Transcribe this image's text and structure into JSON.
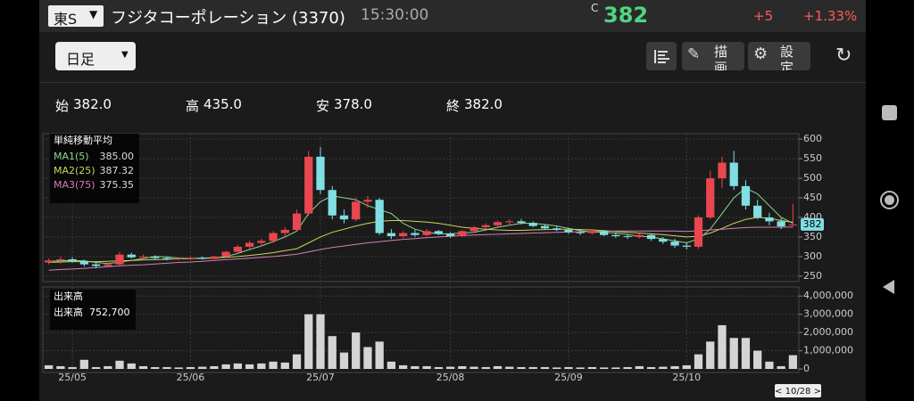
{
  "header": {
    "market": "東S",
    "name": "フジタコーポレーション (3370)",
    "time": "15:30:00",
    "price_prefix": "C",
    "price": "382",
    "change": "+5",
    "change_pct": "+1.33%"
  },
  "toolbar": {
    "period": "日足",
    "draw": "描画",
    "settings": "設定"
  },
  "ohlc": [
    {
      "label": "始",
      "value": "382.0"
    },
    {
      "label": "高",
      "value": "435.0"
    },
    {
      "label": "安",
      "value": "378.0"
    },
    {
      "label": "終",
      "value": "382.0"
    }
  ],
  "cursor_date": "< 10/28 >",
  "chart_data": [
    {
      "type": "candlestick",
      "legend_title": "単純移動平均",
      "up_color": "#e8474f",
      "down_color": "#7fdfe4",
      "grid": true,
      "open": [
        285,
        290,
        293,
        288,
        280,
        276,
        280,
        305,
        298,
        300,
        296,
        293,
        295,
        297,
        294,
        300,
        312,
        325,
        335,
        340,
        360,
        368,
        410,
        555,
        470,
        405,
        395,
        440,
        445,
        360,
        352,
        360,
        355,
        365,
        358,
        352,
        365,
        375,
        380,
        388,
        390,
        386,
        378,
        372,
        368,
        362,
        360,
        365,
        355,
        352,
        350,
        355,
        345,
        338,
        328,
        325,
        400,
        500,
        540,
        480,
        430,
        400,
        390,
        382
      ],
      "high": [
        295,
        300,
        298,
        292,
        285,
        285,
        312,
        310,
        305,
        303,
        300,
        298,
        300,
        300,
        302,
        315,
        330,
        340,
        345,
        365,
        375,
        420,
        570,
        580,
        480,
        420,
        450,
        455,
        450,
        370,
        365,
        368,
        370,
        368,
        362,
        368,
        378,
        385,
        392,
        395,
        396,
        390,
        382,
        378,
        372,
        368,
        370,
        368,
        360,
        358,
        360,
        358,
        350,
        345,
        335,
        405,
        520,
        555,
        570,
        495,
        445,
        412,
        398,
        435
      ],
      "low": [
        280,
        282,
        285,
        275,
        270,
        272,
        278,
        295,
        292,
        293,
        290,
        290,
        291,
        292,
        293,
        298,
        308,
        320,
        330,
        335,
        350,
        365,
        405,
        460,
        395,
        385,
        390,
        425,
        355,
        345,
        348,
        350,
        352,
        355,
        348,
        350,
        360,
        370,
        375,
        380,
        382,
        375,
        368,
        365,
        358,
        355,
        356,
        352,
        348,
        345,
        346,
        340,
        332,
        322,
        318,
        320,
        395,
        475,
        470,
        420,
        395,
        380,
        370,
        378
      ],
      "close": [
        290,
        293,
        288,
        280,
        276,
        280,
        305,
        298,
        300,
        296,
        293,
        295,
        297,
        294,
        300,
        312,
        325,
        335,
        340,
        360,
        368,
        410,
        555,
        470,
        405,
        395,
        440,
        445,
        360,
        352,
        360,
        355,
        365,
        358,
        352,
        365,
        375,
        380,
        388,
        390,
        386,
        378,
        372,
        368,
        362,
        360,
        365,
        355,
        352,
        350,
        355,
        345,
        338,
        328,
        325,
        400,
        500,
        540,
        480,
        430,
        400,
        390,
        377,
        382
      ],
      "series": [
        {
          "name": "MA1(5)",
          "legend_value": "385.00",
          "color": "#8fd88f",
          "values": [
            288,
            289,
            290,
            289,
            285,
            282,
            286,
            290,
            295,
            300,
            299,
            296,
            295,
            296,
            296,
            300,
            308,
            318,
            327,
            338,
            350,
            365,
            410,
            440,
            455,
            450,
            445,
            430,
            420,
            410,
            385,
            370,
            362,
            358,
            358,
            360,
            362,
            368,
            375,
            380,
            385,
            385,
            382,
            378,
            372,
            366,
            363,
            362,
            360,
            356,
            352,
            350,
            345,
            340,
            335,
            345,
            370,
            410,
            450,
            475,
            460,
            430,
            400,
            385
          ]
        },
        {
          "name": "MA2(25)",
          "legend_value": "387.32",
          "color": "#c9d65a",
          "values": [
            285,
            286,
            287,
            287,
            287,
            288,
            289,
            290,
            291,
            292,
            293,
            294,
            295,
            296,
            297,
            298,
            300,
            303,
            306,
            310,
            315,
            320,
            335,
            350,
            362,
            370,
            378,
            385,
            390,
            392,
            392,
            390,
            388,
            385,
            380,
            375,
            372,
            370,
            368,
            367,
            367,
            368,
            369,
            370,
            370,
            369,
            368,
            366,
            364,
            362,
            360,
            358,
            356,
            353,
            350,
            352,
            360,
            372,
            385,
            395,
            400,
            398,
            392,
            387.32
          ]
        },
        {
          "name": "MA3(75)",
          "legend_value": "375.35",
          "color": "#d77fb5",
          "values": [
            265,
            267,
            268,
            270,
            272,
            274,
            276,
            278,
            279,
            281,
            283,
            285,
            286,
            288,
            290,
            292,
            294,
            296,
            298,
            300,
            303,
            306,
            312,
            318,
            323,
            327,
            331,
            335,
            338,
            341,
            344,
            346,
            348,
            350,
            352,
            354,
            355,
            356,
            357,
            358,
            359,
            360,
            361,
            362,
            363,
            363,
            364,
            364,
            365,
            365,
            365,
            365,
            365,
            365,
            364,
            366,
            368,
            370,
            372,
            374,
            375,
            375,
            375,
            375.35
          ]
        }
      ],
      "ylim": [
        236,
        614
      ],
      "yticks": [
        250,
        300,
        350,
        400,
        450,
        500,
        550,
        600
      ],
      "xticks": [
        {
          "value": 2,
          "label": "25/05"
        },
        {
          "value": 12,
          "label": "25/06"
        },
        {
          "value": 23,
          "label": "25/07"
        },
        {
          "value": 34,
          "label": "25/08"
        },
        {
          "value": 44,
          "label": "25/09"
        },
        {
          "value": 54,
          "label": "25/10"
        }
      ]
    },
    {
      "type": "bar",
      "title": "出来高",
      "legend": "出来高",
      "legend_value": "752,700",
      "color": "#d4d4d4",
      "grid": true,
      "values": [
        200000,
        150000,
        100000,
        500000,
        100000,
        150000,
        450000,
        300000,
        150000,
        100000,
        100000,
        80000,
        100000,
        120000,
        150000,
        250000,
        300000,
        250000,
        300000,
        400000,
        350000,
        800000,
        3000000,
        3000000,
        1800000,
        900000,
        2000000,
        1200000,
        1500000,
        400000,
        200000,
        150000,
        150000,
        100000,
        120000,
        150000,
        120000,
        100000,
        150000,
        120000,
        100000,
        100000,
        100000,
        80000,
        100000,
        80000,
        100000,
        80000,
        80000,
        100000,
        150000,
        100000,
        120000,
        150000,
        200000,
        800000,
        1500000,
        2400000,
        1700000,
        1700000,
        1000000,
        400000,
        150000,
        752700
      ],
      "ylim": [
        0,
        4500000
      ],
      "yticks": [
        0,
        {
          "value": 1000000,
          "label": "1,000,000"
        },
        {
          "value": 2000000,
          "label": "2,000,000"
        },
        {
          "value": 3000000,
          "label": "3,000,000"
        },
        {
          "value": 4000000,
          "label": "4,000,000"
        }
      ]
    }
  ]
}
